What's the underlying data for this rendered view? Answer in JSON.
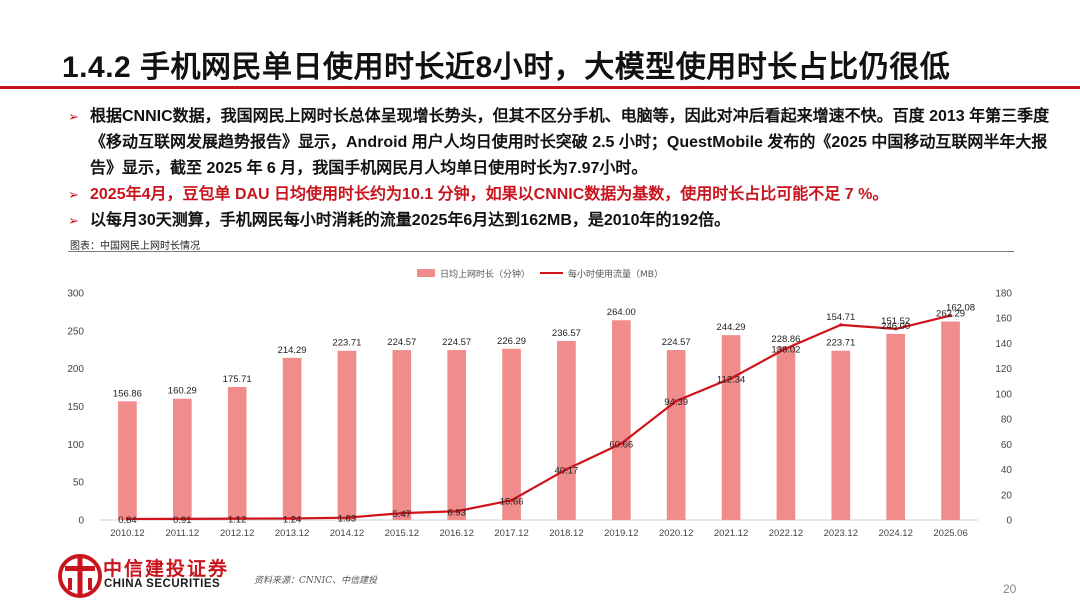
{
  "title": "1.4.2 手机网民单日使用时长近8小时，大模型使用时长占比仍很低",
  "bullets": [
    {
      "text": "根据CNNIC数据，我国网民上网时长总体呈现增长势头，但其不区分手机、电脑等，因此对冲后看起来增速不快。百度 2013 年第三季度《移动互联网发展趋势报告》显示，Android 用户人均日使用时长突破 2.5 小时；QuestMobile 发布的《2025 中国移动互联网半年大报告》显示，截至 2025 年 6 月，我国手机网民月人均单日使用时长为7.97小时。",
      "highlight": false
    },
    {
      "text": "2025年4月，豆包单 DAU 日均使用时长约为10.1 分钟，如果以CNNIC数据为基数，使用时长占比可能不足 7 %。",
      "highlight": true
    },
    {
      "text": "以每月30天测算，手机网民每小时消耗的流量2025年6月达到162MB，是2010年的192倍。",
      "highlight": false
    }
  ],
  "bullet_mark": "➢",
  "figure_caption": "图表：中国网民上网时长情况",
  "source_note": "资料来源：CNNIC、中信建投",
  "logo": {
    "cn": "中信建投证券",
    "en": "CHINA SECURITIES"
  },
  "page_number": "20",
  "colors": {
    "accent": "#c8151d",
    "bar": "#f08c8c",
    "line": "#d0121b"
  },
  "chart_data": {
    "type": "bar",
    "categories": [
      "2010.12",
      "2011.12",
      "2012.12",
      "2013.12",
      "2014.12",
      "2015.12",
      "2016.12",
      "2017.12",
      "2018.12",
      "2019.12",
      "2020.12",
      "2021.12",
      "2022.12",
      "2023.12",
      "2024.12",
      "2025.06"
    ],
    "series": [
      {
        "name": "日均上网时长（分钟）",
        "type": "bar",
        "axis": "left",
        "values": [
          156.86,
          160.29,
          175.71,
          214.29,
          223.71,
          224.57,
          224.57,
          226.29,
          236.57,
          264.0,
          224.57,
          244.29,
          228.86,
          223.71,
          246.0,
          262.29
        ],
        "labels": [
          "156.86",
          "160.29",
          "175.71",
          "214.29",
          "223.71",
          "224.57",
          "224.57",
          "226.29",
          "236.57",
          "264.00",
          "224.57",
          "244.29",
          "228.86",
          "223.71",
          "246.00",
          "262.29"
        ]
      },
      {
        "name": "每小时使用流量（MB）",
        "type": "line",
        "axis": "right",
        "values": [
          0.84,
          0.91,
          1.12,
          1.24,
          1.83,
          5.47,
          6.93,
          15.66,
          40.17,
          60.66,
          94.39,
          112.34,
          136.02,
          154.71,
          151.52,
          162.08
        ],
        "labels": [
          "0.84",
          "0.91",
          "1.12",
          "1.24",
          "1.83",
          "5.47",
          "6.93",
          "15.66",
          "40.17",
          "60.66",
          "94.39",
          "112.34",
          "136.02",
          "154.71",
          "151.52",
          "162.08"
        ]
      }
    ],
    "ylim_left": [
      0,
      300
    ],
    "yticks_left": [
      "0",
      "50",
      "100",
      "150",
      "200",
      "250",
      "300"
    ],
    "ylim_right": [
      0,
      180
    ],
    "yticks_right": [
      "0",
      "20",
      "40",
      "60",
      "80",
      "100",
      "120",
      "140",
      "160",
      "180"
    ],
    "legend_position": "top-center",
    "grid": false
  }
}
